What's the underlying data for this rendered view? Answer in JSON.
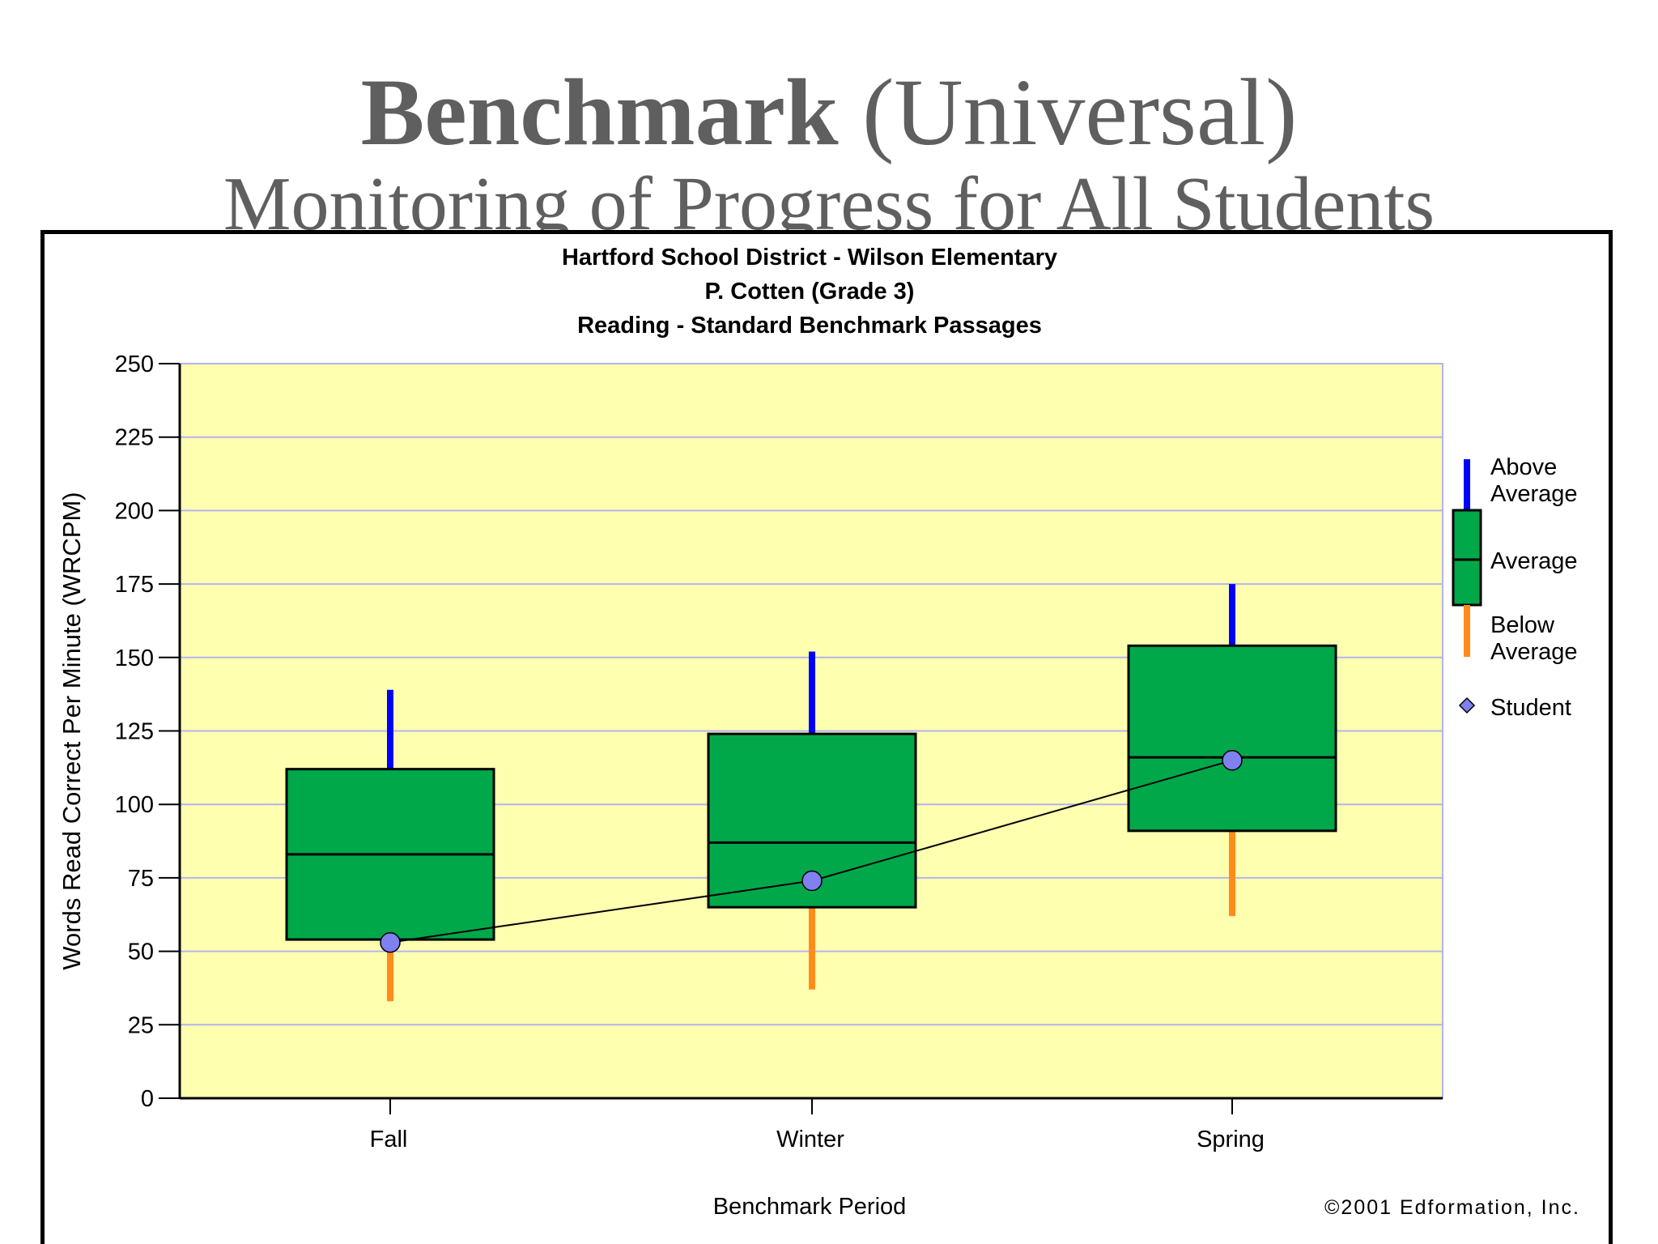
{
  "slide": {
    "title_bold": "Benchmark",
    "title_rest": " (Universal)",
    "subtitle": "Monitoring of Progress for All Students"
  },
  "chart_data": {
    "type": "box",
    "title_lines": [
      "Hartford School District - Wilson Elementary",
      "P. Cotten (Grade 3)",
      "Reading - Standard Benchmark Passages"
    ],
    "ylabel": "Words Read Correct Per Minute (WRCPM)",
    "xlabel": "Benchmark Period",
    "ylim": [
      0,
      250
    ],
    "yticks": [
      0,
      25,
      50,
      75,
      100,
      125,
      150,
      175,
      200,
      225,
      250
    ],
    "grid": true,
    "categories": [
      "Fall",
      "Winter",
      "Spring"
    ],
    "boxes": [
      {
        "category": "Fall",
        "low": 33,
        "q1": 54,
        "median": 83,
        "q3": 112,
        "high": 139
      },
      {
        "category": "Winter",
        "low": 37,
        "q1": 65,
        "median": 87,
        "q3": 124,
        "high": 152
      },
      {
        "category": "Spring",
        "low": 62,
        "q1": 91,
        "median": 116,
        "q3": 154,
        "high": 175
      }
    ],
    "student": [
      53,
      74,
      115
    ],
    "legend": {
      "position": "right",
      "above": "Above\nAverage",
      "average": "Average",
      "below": "Below\nAverage",
      "student": "Student"
    },
    "copyright": "©2001 Edformation, Inc.",
    "colors": {
      "plot_bg": "#ffffb0",
      "grid": "#b4b4f0",
      "box": "#00a84a",
      "above": "#0000ff",
      "below": "#ff8c1a",
      "student": "#8080f0"
    }
  }
}
